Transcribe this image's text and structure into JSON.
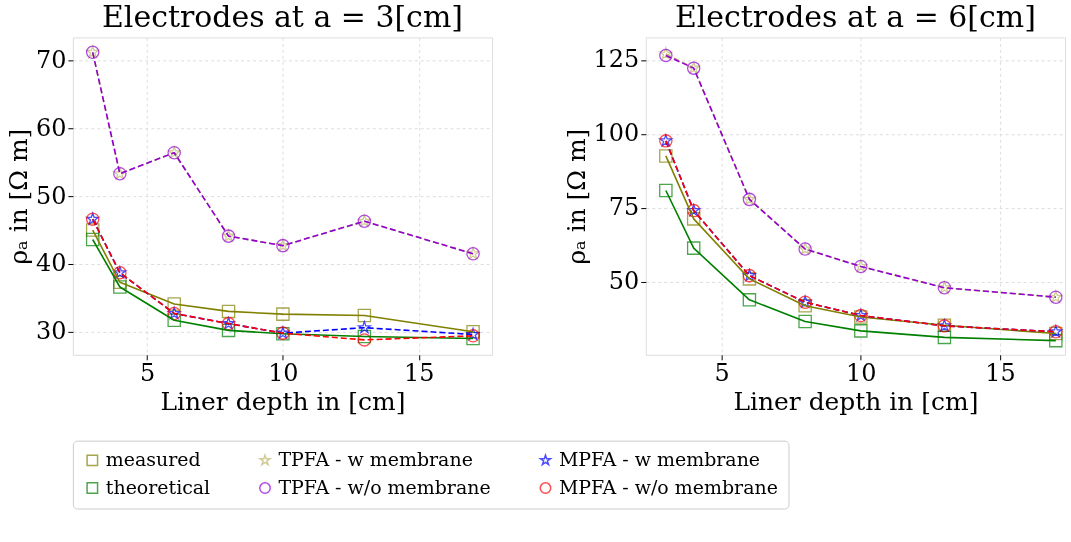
{
  "chart_data": [
    {
      "type": "line",
      "title": "Electrodes at a = 3[cm]",
      "xlabel": "Liner depth in [cm]",
      "ylabel": "ρₐ in [Ω m]",
      "x": [
        3,
        4,
        6,
        8,
        10,
        13,
        17
      ],
      "xlim": [
        2.27,
        17.7
      ],
      "xticks": [
        5,
        10,
        15
      ],
      "ylim": [
        26.6,
        73.4
      ],
      "yticks": [
        30,
        40,
        50,
        60,
        70
      ],
      "grid": true,
      "legend": "bottom",
      "series": [
        {
          "name": "measured",
          "color": "#808000",
          "marker": "square",
          "line_style": "solid",
          "values": [
            45.0,
            37.3,
            34.1,
            33.0,
            32.6,
            32.4,
            30.0
          ]
        },
        {
          "name": "theoretical",
          "color": "#008000",
          "marker": "square",
          "line_style": "solid",
          "values": [
            43.6,
            36.6,
            31.7,
            30.2,
            29.7,
            29.3,
            29.0
          ]
        },
        {
          "name": "TPFA - w membrane",
          "color": "#bdb76b",
          "marker": "star",
          "line_style": "dashed",
          "values": [
            71.2,
            53.3,
            56.4,
            44.1,
            42.7,
            46.3,
            41.5
          ]
        },
        {
          "name": "TPFA - w/o membrane",
          "color": "#9400d3",
          "marker": "circle",
          "line_style": "dashed",
          "values": [
            71.2,
            53.3,
            56.4,
            44.1,
            42.7,
            46.3,
            41.5
          ]
        },
        {
          "name": "MPFA - w membrane",
          "color": "#0000ff",
          "marker": "star",
          "line_style": "dashed",
          "values": [
            46.6,
            38.7,
            32.7,
            31.2,
            29.8,
            30.6,
            29.6
          ]
        },
        {
          "name": "MPFA - w/o membrane",
          "color": "#ff0000",
          "marker": "circle",
          "line_style": "dashed",
          "values": [
            46.6,
            38.7,
            32.7,
            31.2,
            29.8,
            28.8,
            29.4
          ]
        }
      ]
    },
    {
      "type": "line",
      "title": "Electrodes at a = 6[cm]",
      "xlabel": "Liner depth in [cm]",
      "ylabel": "ρₐ in [Ω m]",
      "x": [
        3,
        4,
        6,
        8,
        10,
        13,
        17
      ],
      "xlim": [
        2.28,
        17.33
      ],
      "xticks": [
        5,
        10,
        15
      ],
      "ylim": [
        25.2,
        132.6
      ],
      "yticks": [
        50,
        75,
        100,
        125
      ],
      "grid": true,
      "legend": "bottom",
      "series": [
        {
          "name": "measured",
          "color": "#808000",
          "marker": "square",
          "line_style": "solid",
          "values": [
            92.5,
            71.2,
            50.9,
            41.8,
            38.0,
            35.2,
            32.4
          ]
        },
        {
          "name": "theoretical",
          "color": "#008000",
          "marker": "square",
          "line_style": "solid",
          "values": [
            80.8,
            61.3,
            43.8,
            36.5,
            33.3,
            31.1,
            30.0
          ]
        },
        {
          "name": "TPFA - w membrane",
          "color": "#bdb76b",
          "marker": "star",
          "line_style": "dashed",
          "values": [
            127.0,
            122.2,
            77.8,
            61.0,
            55.1,
            47.9,
            44.7
          ]
        },
        {
          "name": "TPFA - w/o membrane",
          "color": "#9400d3",
          "marker": "circle",
          "line_style": "dashed",
          "values": [
            126.5,
            122.2,
            77.8,
            61.0,
            55.1,
            47.9,
            44.7
          ]
        },
        {
          "name": "MPFA - w membrane",
          "color": "#0000ff",
          "marker": "star",
          "line_style": "dashed",
          "values": [
            97.6,
            74.0,
            52.0,
            43.0,
            38.5,
            35.0,
            33.0
          ]
        },
        {
          "name": "MPFA - w/o membrane",
          "color": "#ff0000",
          "marker": "circle",
          "line_style": "dashed",
          "values": [
            97.6,
            74.0,
            52.0,
            43.0,
            38.5,
            35.0,
            33.0
          ]
        }
      ]
    }
  ]
}
